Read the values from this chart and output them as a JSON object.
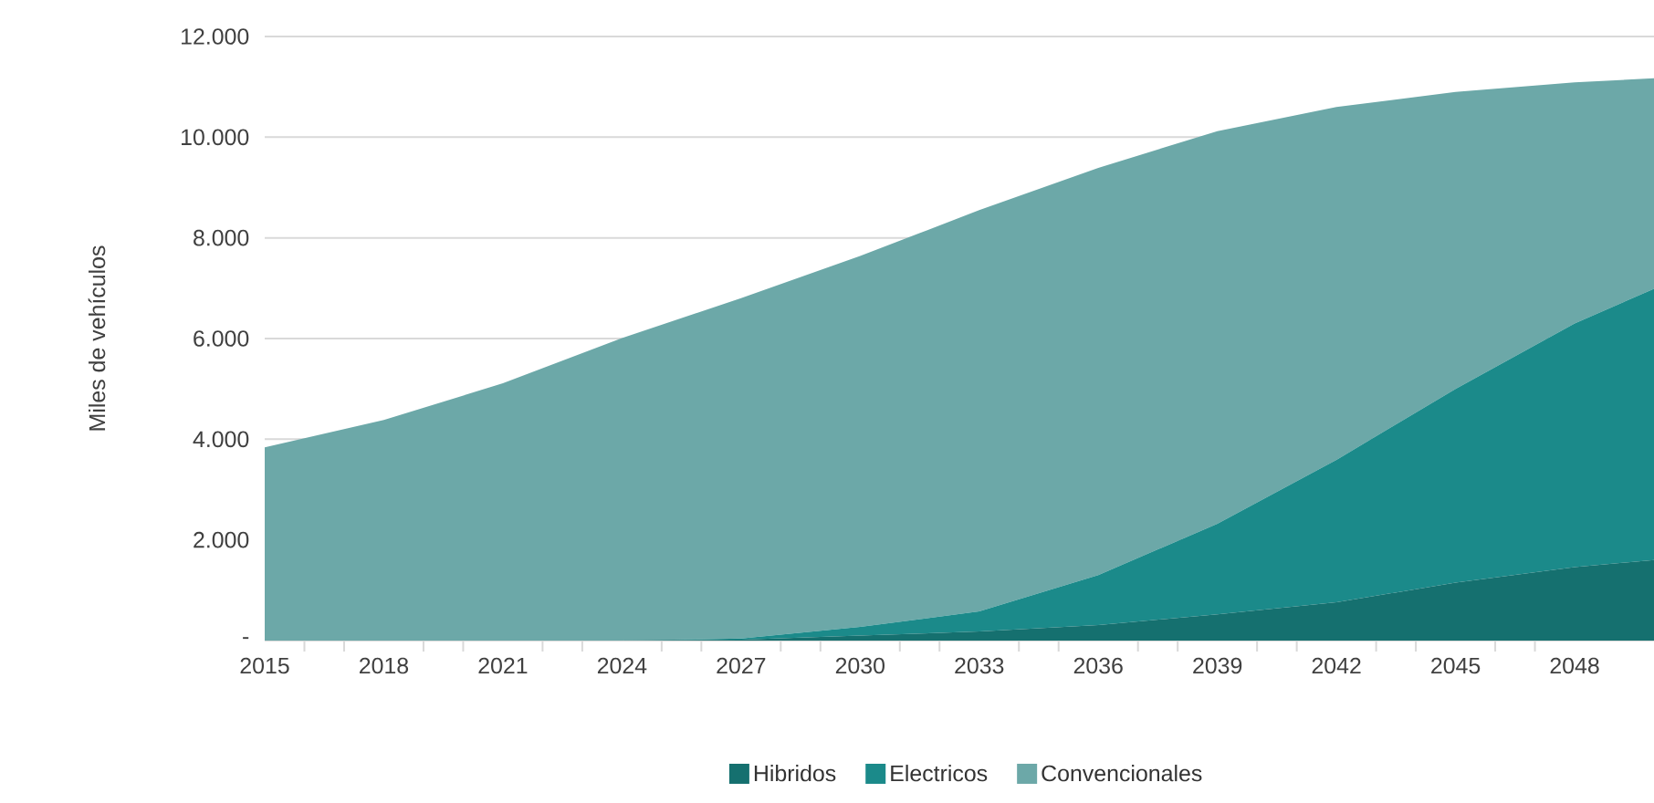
{
  "chart_data": {
    "type": "area",
    "stacked": true,
    "ylabel": "Miles de vehículos",
    "x": [
      2015,
      2018,
      2021,
      2024,
      2027,
      2030,
      2033,
      2036,
      2039,
      2042,
      2045,
      2048,
      2050
    ],
    "series": [
      {
        "name": "Hibridos",
        "color": "#15706f",
        "values": [
          0,
          0,
          0,
          0,
          20,
          100,
          180,
          310,
          520,
          760,
          1150,
          1460,
          1600
        ]
      },
      {
        "name": "Electricos",
        "color": "#1b8a8a",
        "values": [
          0,
          0,
          0,
          0,
          20,
          170,
          400,
          990,
          1800,
          2830,
          3850,
          4840,
          5390
        ]
      },
      {
        "name": "Convencionales",
        "color": "#6ca8a8",
        "values": [
          3840,
          4380,
          5110,
          6010,
          6760,
          7370,
          7970,
          8090,
          7800,
          7010,
          5900,
          4790,
          4180
        ]
      }
    ],
    "xlim": [
      2015,
      2050
    ],
    "ylim": [
      0,
      12000
    ],
    "xticks": [
      2015,
      2018,
      2021,
      2024,
      2027,
      2030,
      2033,
      2036,
      2039,
      2042,
      2045,
      2048
    ],
    "yticks": [
      {
        "value": 0,
        "label": "-"
      },
      {
        "value": 2000,
        "label": "2.000"
      },
      {
        "value": 4000,
        "label": "4.000"
      },
      {
        "value": 6000,
        "label": "6.000"
      },
      {
        "value": 8000,
        "label": "8.000"
      },
      {
        "value": 10000,
        "label": "10.000"
      },
      {
        "value": 12000,
        "label": "12.000"
      }
    ],
    "grid": "y",
    "legend": "bottom"
  }
}
